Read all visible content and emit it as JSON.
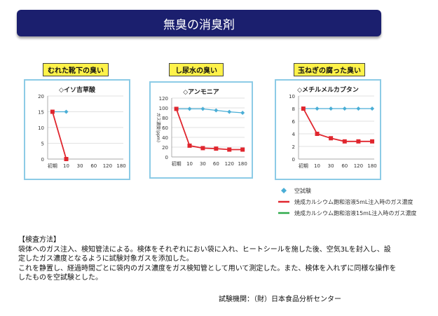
{
  "page_title": "無臭の消臭剤",
  "panels": [
    {
      "label": "むれた靴下の臭い",
      "substance": "◇イソ吉草酸"
    },
    {
      "label": "し尿水の臭い",
      "substance": "◇アンモニア"
    },
    {
      "label": "玉ねぎの腐った臭い",
      "substance": "◇メチルメルカプタン"
    }
  ],
  "chart_data": [
    {
      "type": "line",
      "title": "◇イソ吉草酸",
      "categories": [
        "初期",
        "10",
        "30",
        "60",
        "120",
        "180"
      ],
      "ylim": [
        0,
        20
      ],
      "yticks": [
        0,
        5,
        10,
        15,
        20
      ],
      "ylabel": "",
      "series": [
        {
          "name": "空試験",
          "values": [
            15,
            15,
            null,
            null,
            null,
            null
          ],
          "color": "#4aaed6",
          "marker": "diamond"
        },
        {
          "name": "焼成カルシウム飽和溶液5mL注入時のガス濃度",
          "values": [
            15,
            0,
            null,
            null,
            null,
            null
          ],
          "color": "#e0262e",
          "marker": "square"
        }
      ]
    },
    {
      "type": "line",
      "title": "◇アンモニア",
      "categories": [
        "初期",
        "10",
        "30",
        "60",
        "120",
        "180"
      ],
      "ylim": [
        0,
        120
      ],
      "yticks": [
        0,
        20,
        40,
        60,
        80,
        100,
        120
      ],
      "ylabel": "ガス濃度(ppm)",
      "series": [
        {
          "name": "空試験",
          "values": [
            98,
            98,
            98,
            95,
            92,
            90
          ],
          "color": "#4aaed6",
          "marker": "diamond"
        },
        {
          "name": "焼成カルシウム飽和溶液5mL注入時のガス濃度",
          "values": [
            98,
            23,
            18,
            17,
            15,
            15
          ],
          "color": "#e0262e",
          "marker": "square"
        }
      ]
    },
    {
      "type": "line",
      "title": "◇メチルメルカプタン",
      "categories": [
        "初期",
        "10",
        "30",
        "60",
        "120",
        "180"
      ],
      "ylim": [
        0,
        10
      ],
      "yticks": [
        0,
        2,
        4,
        6,
        8,
        10
      ],
      "ylabel": "",
      "series": [
        {
          "name": "空試験",
          "values": [
            8,
            8,
            8,
            8,
            8,
            8
          ],
          "color": "#4aaed6",
          "marker": "diamond"
        },
        {
          "name": "焼成カルシウム飽和溶液5mL注入時のガス濃度",
          "values": [
            8,
            4,
            3.3,
            2.8,
            2.8,
            2.8
          ],
          "color": "#e0262e",
          "marker": "square"
        }
      ]
    }
  ],
  "legend": [
    {
      "label": "空試験",
      "color": "#4aaed6",
      "marker": "diamond"
    },
    {
      "label": "焼成カルシウム飽和溶液5mL注入時のガス濃度",
      "color": "#e0262e",
      "marker": "square"
    },
    {
      "label": "焼成カルシウム飽和溶液15mL注入時のガス濃度",
      "color": "#2eaa4a",
      "marker": "none"
    }
  ],
  "method": {
    "heading": "【検査方法】",
    "para1": "袋体へのガス注入、検知管法による。検体をそれぞれにおい袋に入れ、ヒートシールを施した後、空気3Lを封入し、設定したガス濃度となるように試験対象ガスを添加した。",
    "para2": "これを静置し、経過時間ごとに袋内のガス濃度をガス検知管として用いて測定した。また、検体を入れずに同様な操作をしたものを空試験とした。",
    "institute": "試験機関：（財）日本食品分析センター"
  }
}
